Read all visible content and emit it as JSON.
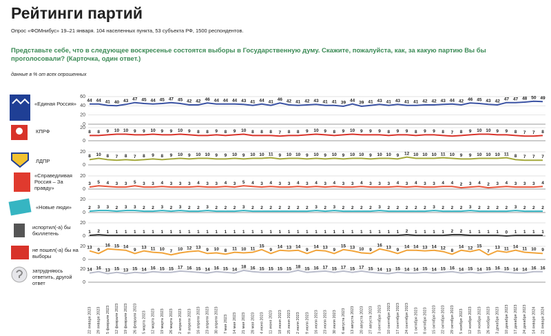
{
  "chart_data": {
    "type": "line",
    "title": "Рейтинги партий",
    "subtitle": "Опрос «ФОМнибус» 19–21 января. 104 населенных пункта, 53 субъекта РФ, 1500 респондентов.",
    "question": "Представьте себе, что в следующее воскресенье состоятся выборы в Государственную думу. Скажите, пожалуйста, как, за какую партию Вы бы проголосовали? (Карточка, один ответ.)",
    "note": "данные в % от всех опрошенных",
    "grid": true,
    "categories": [
      "22 января 2023",
      "29 января 2023",
      "5 февраля 2023",
      "12 февраля 2023",
      "19 февраля 2023",
      "26 февраля 2023",
      "5 марта 2023",
      "12 марта 2023",
      "19 марта 2023",
      "26 марта 2023",
      "2 апреля 2023",
      "9 апреля 2023",
      "16 апреля 2023",
      "23 апреля 2023",
      "30 апреля 2023",
      "7 мая 2023",
      "14 мая 2023",
      "21 мая 2023",
      "28 мая 2023",
      "4 июня 2023",
      "11 июня 2023",
      "18 июня 2023",
      "25 июня 2023",
      "2 июля 2023",
      "9 июля 2023",
      "16 июля 2023",
      "23 июля 2023",
      "30 июля 2023",
      "6 августа 2023",
      "13 августа 2023",
      "20 августа 2023",
      "27 августа 2023",
      "3 сентября 2023",
      "10 сентября 2023",
      "17 сентября 2023",
      "24 сентября 2023",
      "1 октября 2023",
      "8 октября 2023",
      "15 октября 2023",
      "22 октября 2023",
      "29 октября 2023",
      "5 ноября 2023",
      "12 ноября 2023",
      "19 ноября 2023",
      "26 ноября 2023",
      "3 декабря 2023",
      "10 декабря 2023",
      "17 декабря 2023",
      "24 декабря 2023",
      "14 января 2024",
      "21 января 2024"
    ],
    "series": [
      {
        "name": "«Единая Россия»",
        "color": "#3a52a3",
        "ylim": [
          0,
          60
        ],
        "yticks": [
          0,
          20,
          40,
          60
        ],
        "values": [
          44,
          44,
          41,
          40,
          43,
          47,
          45,
          44,
          45,
          47,
          45,
          42,
          42,
          46,
          44,
          44,
          44,
          43,
          41,
          44,
          41,
          46,
          42,
          41,
          42,
          43,
          41,
          41,
          39,
          44,
          39,
          41,
          43,
          41,
          43,
          41,
          41,
          42,
          42,
          43,
          44,
          42,
          46,
          45,
          43,
          42,
          47,
          47,
          48,
          50,
          49
        ]
      },
      {
        "name": "КПРФ",
        "color": "#d8332a",
        "ylim": [
          0,
          20
        ],
        "yticks": [
          0,
          20
        ],
        "values": [
          8,
          8,
          9,
          10,
          10,
          9,
          9,
          10,
          9,
          9,
          10,
          9,
          8,
          8,
          9,
          8,
          9,
          10,
          8,
          8,
          8,
          7,
          8,
          8,
          9,
          10,
          9,
          8,
          9,
          10,
          9,
          9,
          9,
          8,
          9,
          9,
          8,
          9,
          9,
          8,
          7,
          8,
          9,
          10,
          10,
          9,
          9,
          8,
          7,
          7,
          8
        ]
      },
      {
        "name": "ЛДПР",
        "color": "#a3a83a",
        "ylim": [
          0,
          20
        ],
        "yticks": [
          0,
          20
        ],
        "values": [
          8,
          10,
          8,
          7,
          8,
          7,
          8,
          9,
          8,
          9,
          10,
          9,
          10,
          10,
          9,
          9,
          10,
          9,
          10,
          10,
          11,
          9,
          10,
          10,
          9,
          10,
          9,
          10,
          9,
          10,
          10,
          9,
          10,
          10,
          9,
          12,
          10,
          10,
          10,
          11,
          10,
          9,
          9,
          10,
          10,
          10,
          11,
          8,
          7,
          7,
          7
        ]
      },
      {
        "name": "«Справедливая Россия – За правду»",
        "color": "#e8563c",
        "ylim": [
          0,
          20
        ],
        "yticks": [
          0,
          20
        ],
        "values": [
          3,
          5,
          4,
          3,
          3,
          5,
          3,
          3,
          4,
          3,
          3,
          3,
          4,
          3,
          3,
          4,
          3,
          5,
          4,
          3,
          4,
          3,
          3,
          4,
          3,
          4,
          3,
          4,
          3,
          3,
          4,
          3,
          3,
          3,
          4,
          3,
          4,
          3,
          3,
          4,
          4,
          2,
          3,
          4,
          2,
          3,
          4,
          3,
          3,
          3,
          4
        ]
      },
      {
        "name": "«Новые люди»",
        "color": "#34b4c2",
        "ylim": [
          0,
          20
        ],
        "yticks": [
          0,
          20
        ],
        "values": [
          2,
          3,
          3,
          2,
          3,
          3,
          2,
          2,
          3,
          2,
          3,
          2,
          2,
          3,
          2,
          2,
          2,
          3,
          2,
          2,
          2,
          2,
          2,
          2,
          2,
          3,
          2,
          3,
          2,
          2,
          2,
          2,
          3,
          2,
          2,
          2,
          2,
          2,
          3,
          2,
          2,
          2,
          3,
          2,
          2,
          2,
          2,
          3,
          2,
          2,
          2
        ]
      },
      {
        "name": "испортил(-а) бы бюллетень",
        "color": "#333333",
        "ylim": [
          0,
          20
        ],
        "yticks": [
          0,
          20
        ],
        "values": [
          1,
          2,
          1,
          1,
          1,
          1,
          1,
          1,
          1,
          1,
          1,
          1,
          1,
          1,
          1,
          1,
          1,
          1,
          1,
          1,
          1,
          1,
          1,
          1,
          1,
          1,
          1,
          1,
          1,
          1,
          1,
          1,
          1,
          1,
          1,
          2,
          1,
          1,
          1,
          1,
          2,
          2,
          1,
          1,
          1,
          1,
          0,
          1,
          1,
          1,
          1
        ]
      },
      {
        "name": "не пошел(-а) бы на выборы",
        "color": "#f2a43a",
        "ylim": [
          0,
          20
        ],
        "yticks": [
          0,
          20
        ],
        "values": [
          13,
          9,
          16,
          15,
          14,
          9,
          13,
          11,
          10,
          7,
          10,
          12,
          13,
          9,
          10,
          8,
          11,
          10,
          11,
          15,
          9,
          14,
          13,
          14,
          9,
          14,
          13,
          9,
          15,
          13,
          10,
          9,
          16,
          13,
          9,
          14,
          14,
          13,
          14,
          12,
          8,
          14,
          12,
          15,
          7,
          13,
          11,
          14,
          11,
          10,
          9
        ]
      },
      {
        "name": "затрудняюсь ответить, другой ответ",
        "color": "#b9bccb",
        "ylim": [
          0,
          20
        ],
        "yticks": [
          0,
          20
        ],
        "values": [
          14,
          16,
          13,
          15,
          13,
          15,
          14,
          16,
          15,
          15,
          17,
          16,
          15,
          14,
          16,
          15,
          14,
          18,
          16,
          15,
          15,
          15,
          15,
          18,
          15,
          16,
          17,
          15,
          17,
          15,
          17,
          15,
          14,
          13,
          15,
          14,
          14,
          15,
          14,
          15,
          16,
          14,
          15,
          14,
          15,
          16,
          15,
          14,
          14,
          16,
          16
        ]
      }
    ]
  }
}
